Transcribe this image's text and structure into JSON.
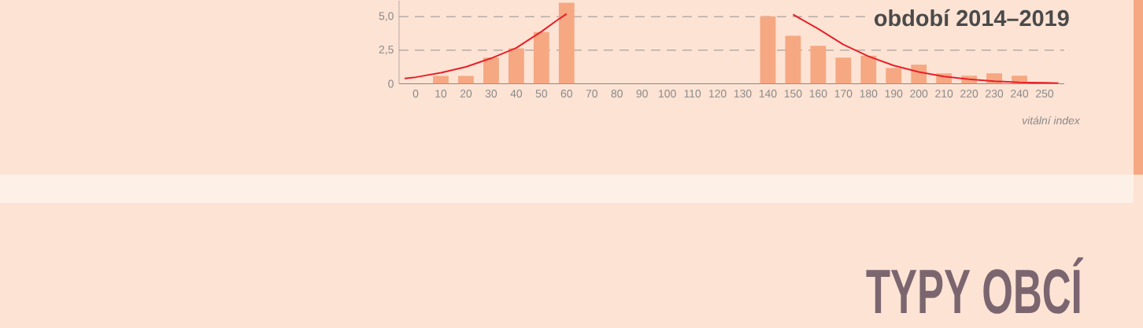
{
  "chart_data": {
    "type": "bar",
    "title": "období 2014–2019",
    "xlabel": "vitální index",
    "annotations": [
      "TYPY OBCÍ"
    ],
    "x": [
      10,
      20,
      30,
      40,
      50,
      60,
      70,
      80,
      90,
      100,
      110,
      120,
      130,
      140,
      150,
      160,
      170,
      180,
      190,
      200,
      210,
      220,
      230,
      240
    ],
    "xlim": [
      -6.6,
      257.8
    ],
    "xticks": [
      0,
      10,
      20,
      30,
      40,
      50,
      60,
      70,
      80,
      90,
      100,
      110,
      120,
      130,
      140,
      150,
      160,
      170,
      180,
      190,
      200,
      210,
      220,
      230,
      240,
      250
    ],
    "ylim": [
      0,
      6.2
    ],
    "yticks": [
      0,
      {
        "value": 2.5,
        "label": "2,5"
      },
      {
        "value": 5,
        "label": "5,0"
      }
    ],
    "grid": "y",
    "series": [
      {
        "color": "#f5a882",
        "values": [
          0.58,
          0.58,
          1.95,
          2.63,
          3.85,
          6.03,
          null,
          null,
          null,
          null,
          null,
          null,
          null,
          5.02,
          3.58,
          2.82,
          1.95,
          2.1,
          1.17,
          1.42,
          0.78,
          0.6,
          0.78,
          0.6
        ]
      },
      {
        "type": "line",
        "color": "#e8202a",
        "x": [
          -4.4,
          0,
          10,
          20,
          30,
          40,
          50,
          57.2,
          60,
          66.6,
          100,
          143.6,
          150,
          160,
          170,
          180,
          190,
          200,
          210,
          220,
          230,
          240,
          250,
          255.5
        ],
        "values": [
          0.39,
          0.49,
          0.82,
          1.26,
          1.9,
          2.67,
          3.89,
          4.86,
          5.21,
          null,
          null,
          null,
          5.16,
          4.09,
          2.92,
          2.04,
          1.36,
          0.88,
          0.54,
          0.33,
          0.19,
          0.1,
          0.08,
          0.04
        ]
      }
    ]
  }
}
